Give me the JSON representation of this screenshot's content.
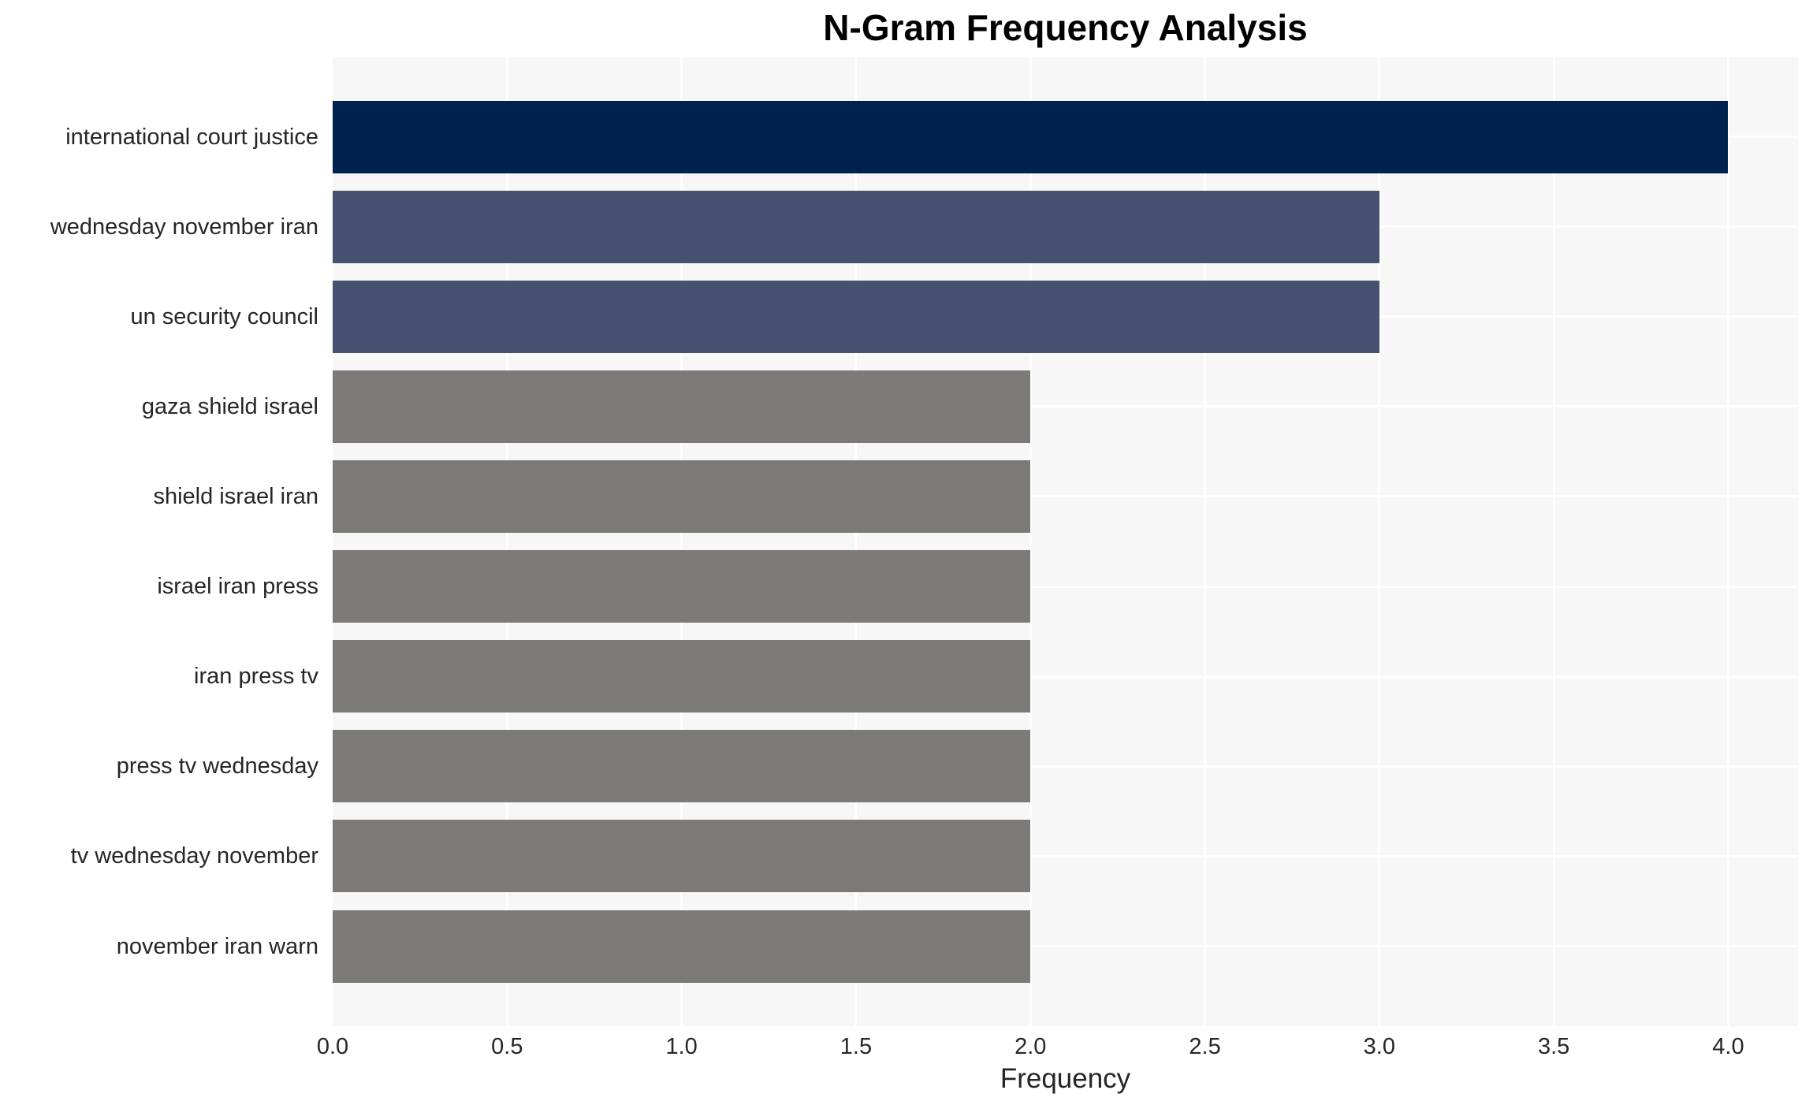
{
  "chart_data": {
    "type": "bar",
    "orientation": "horizontal",
    "title": "N-Gram Frequency Analysis",
    "xlabel": "Frequency",
    "ylabel": "",
    "categories": [
      "international court justice",
      "wednesday november iran",
      "un security council",
      "gaza shield israel",
      "shield israel iran",
      "israel iran press",
      "iran press tv",
      "press tv wednesday",
      "tv wednesday november",
      "november iran warn"
    ],
    "values": [
      4,
      3,
      3,
      2,
      2,
      2,
      2,
      2,
      2,
      2
    ],
    "bar_colors": [
      "#00224e",
      "#45516e",
      "#45516e",
      "#7b7a76",
      "#7b7a76",
      "#7b7a76",
      "#7b7a76",
      "#7b7a76",
      "#7b7a76",
      "#7b7a76"
    ],
    "xlim": [
      0,
      4.2
    ],
    "xtick_values": [
      0,
      0.5,
      1,
      1.5,
      2,
      2.5,
      3,
      3.5,
      4
    ],
    "xtick_labels": [
      "0.0",
      "0.5",
      "1.0",
      "1.5",
      "2.0",
      "2.5",
      "3.0",
      "3.5",
      "4.0"
    ],
    "grid": true,
    "legend_position": "none",
    "colors": {
      "figure_background": "#ffffff",
      "plot_background": "#f7f7f7",
      "gridline": "#ffffff",
      "tick_text": "#262626",
      "title_text": "#000000"
    }
  }
}
